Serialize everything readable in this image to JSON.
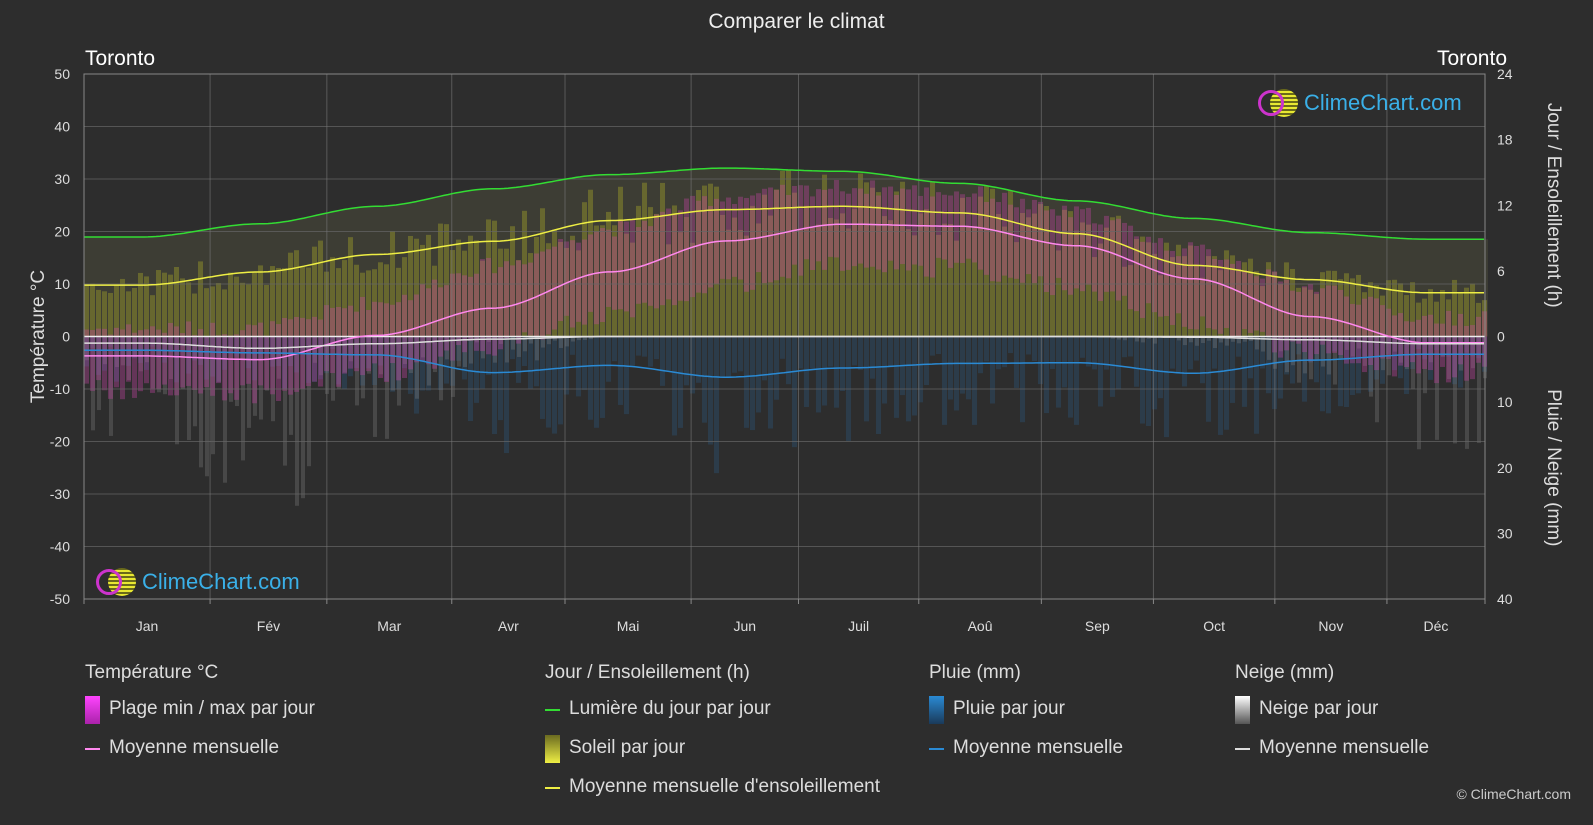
{
  "title": "Comparer le climat",
  "city_left": "Toronto",
  "city_right": "Toronto",
  "logo_text": "ClimeChart.com",
  "copyright": "© ClimeChart.com",
  "colors": {
    "background": "#2d2d2d",
    "daylight": "#33dd33",
    "sunshine": "#eeee44",
    "temp_avg": "#ff88ee",
    "temp_band": "#cc33aa",
    "rain": "#2a8ad4",
    "snow": "#dddddd"
  },
  "legend": {
    "temperature": {
      "head": "Température °C",
      "items": [
        "Plage min / max par jour",
        "Moyenne mensuelle"
      ]
    },
    "sun": {
      "head": "Jour / Ensoleillement (h)",
      "items": [
        "Lumière du jour par jour",
        "Soleil par jour",
        "Moyenne mensuelle d'ensoleillement"
      ]
    },
    "rain": {
      "head": "Pluie (mm)",
      "items": [
        "Pluie par jour",
        "Moyenne mensuelle"
      ]
    },
    "snow": {
      "head": "Neige (mm)",
      "items": [
        "Neige par jour",
        "Moyenne mensuelle"
      ]
    }
  },
  "chart_data": {
    "type": "line",
    "title": "Comparer le climat",
    "months": [
      "Jan",
      "Fév",
      "Mar",
      "Avr",
      "Mai",
      "Jun",
      "Juil",
      "Aoû",
      "Sep",
      "Oct",
      "Nov",
      "Déc"
    ],
    "left_axis": {
      "label": "Température °C",
      "ticks": [
        50,
        40,
        30,
        20,
        10,
        0,
        -10,
        -20,
        -30,
        -40,
        -50
      ],
      "range": [
        -50,
        50
      ]
    },
    "right_axis_top": {
      "label": "Jour / Ensoleillement (h)",
      "ticks": [
        24,
        18,
        12,
        6,
        0
      ],
      "range": [
        0,
        24
      ]
    },
    "right_axis_bottom": {
      "label": "Pluie / Neige (mm)",
      "ticks": [
        0,
        10,
        20,
        30,
        40
      ],
      "range": [
        0,
        40
      ]
    },
    "grid": true,
    "series": [
      {
        "name": "Lumière du jour par jour",
        "axis": "hours",
        "values": [
          9.1,
          10.3,
          11.9,
          13.5,
          14.8,
          15.4,
          15.1,
          14.0,
          12.4,
          10.8,
          9.5,
          8.9
        ]
      },
      {
        "name": "Moyenne mensuelle d'ensoleillement",
        "axis": "hours",
        "values": [
          4.7,
          5.9,
          7.5,
          8.7,
          10.6,
          11.6,
          11.9,
          11.3,
          9.4,
          6.5,
          5.2,
          4.0
        ]
      },
      {
        "name": "Moyenne mensuelle",
        "group": "Température °C",
        "axis": "temp",
        "values": [
          -3.7,
          -4.4,
          0.2,
          5.4,
          12.3,
          18.2,
          21.4,
          21.0,
          17.3,
          11.0,
          3.8,
          -1.2
        ]
      },
      {
        "name": "Moyenne mensuelle",
        "group": "Pluie (mm)",
        "axis": "precip",
        "values": [
          2.1,
          2.5,
          2.8,
          5.5,
          4.4,
          6.2,
          4.8,
          4.1,
          4.0,
          5.6,
          3.6,
          2.7
        ]
      },
      {
        "name": "Moyenne mensuelle",
        "group": "Neige (mm)",
        "axis": "precip",
        "values": [
          1.0,
          1.8,
          1.1,
          0.4,
          0.0,
          0.0,
          0.0,
          0.0,
          0.0,
          0.1,
          0.5,
          1.1
        ]
      }
    ],
    "temp_band": {
      "min": [
        -8,
        -9,
        -5,
        0,
        6,
        12,
        16,
        15,
        11,
        5,
        -1,
        -5
      ],
      "max": [
        0,
        0,
        5,
        12,
        19,
        25,
        27,
        26,
        22,
        15,
        8,
        2
      ]
    }
  }
}
